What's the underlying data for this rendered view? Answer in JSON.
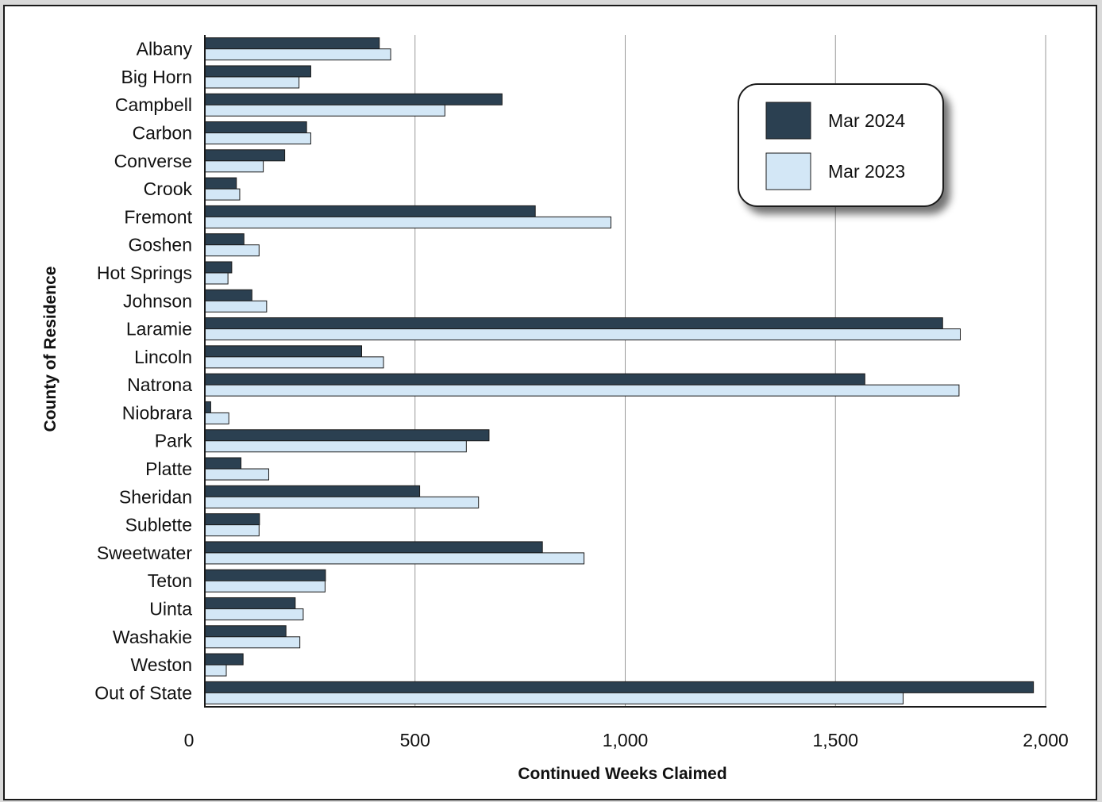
{
  "chart_data": {
    "type": "bar",
    "orientation": "horizontal",
    "xlabel": "Continued Weeks Claimed",
    "ylabel": "County of Residence",
    "xlim": [
      0,
      2000
    ],
    "xticks": [
      0,
      500,
      1000,
      1500,
      2000
    ],
    "xtick_labels": [
      "0",
      "500",
      "1,000",
      "1,500",
      "2,000"
    ],
    "grid": "vertical",
    "legend_position": "top-right",
    "categories": [
      "Albany",
      "Big Horn",
      "Campbell",
      "Carbon",
      "Converse",
      "Crook",
      "Fremont",
      "Goshen",
      "Hot Springs",
      "Johnson",
      "Laramie",
      "Lincoln",
      "Natrona",
      "Niobrara",
      "Park",
      "Platte",
      "Sheridan",
      "Sublette",
      "Sweetwater",
      "Teton",
      "Uinta",
      "Washakie",
      "Weston",
      "Out of State"
    ],
    "series": [
      {
        "name": "Mar 2024",
        "color": "#2b4051",
        "values": [
          415,
          252,
          707,
          242,
          190,
          75,
          786,
          93,
          64,
          112,
          1755,
          373,
          1570,
          14,
          676,
          86,
          511,
          130,
          803,
          287,
          215,
          193,
          91,
          1971
        ]
      },
      {
        "name": "Mar 2023",
        "color": "#d3e7f6",
        "values": [
          442,
          224,
          571,
          252,
          139,
          83,
          966,
          129,
          55,
          147,
          1797,
          425,
          1794,
          57,
          622,
          152,
          651,
          129,
          902,
          286,
          234,
          226,
          51,
          1661
        ]
      }
    ]
  }
}
